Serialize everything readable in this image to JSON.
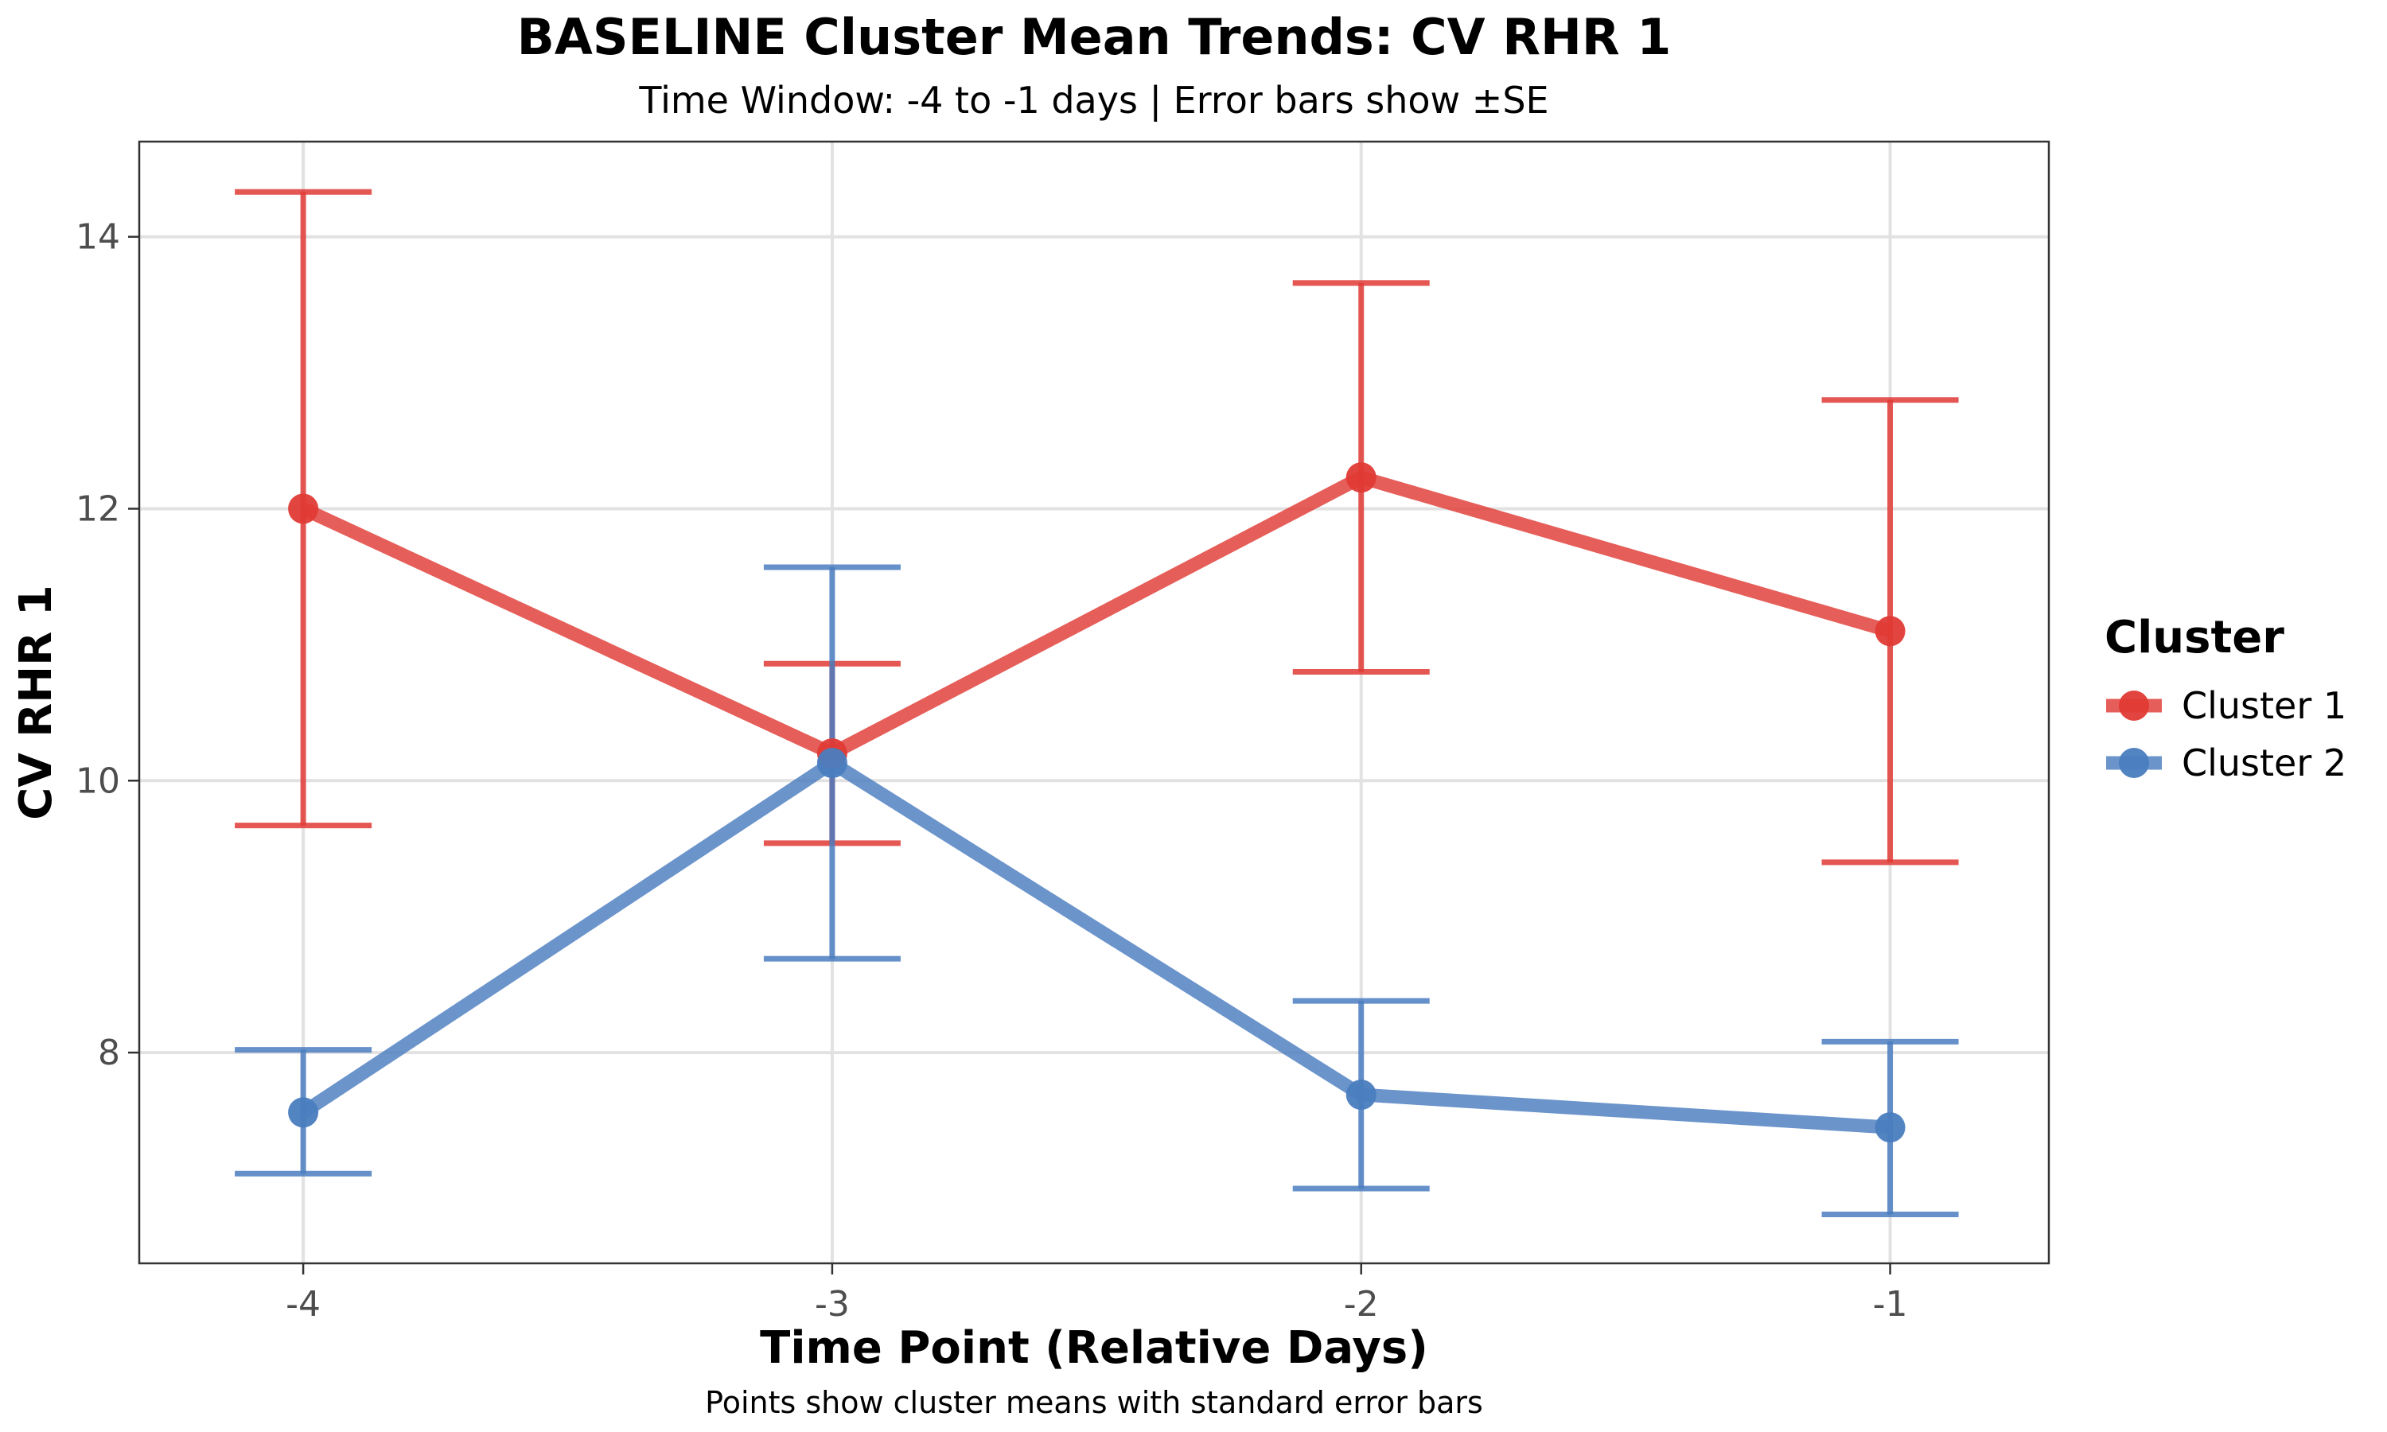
{
  "chart_data": {
    "type": "line",
    "title": "BASELINE Cluster Mean Trends: CV RHR 1",
    "subtitle": "Time Window: -4 to -1 days | Error bars show ±SE",
    "xlabel": "Time Point (Relative Days)",
    "ylabel": "CV RHR 1",
    "caption": "Points show cluster means with standard error bars",
    "x": [
      -4,
      -3,
      -2,
      -1
    ],
    "x_tick_labels": [
      "-4",
      "-3",
      "-2",
      "-1"
    ],
    "y_ticks": [
      8,
      10,
      12,
      14
    ],
    "y_tick_labels": [
      "8",
      "10",
      "12",
      "14"
    ],
    "xlim": [
      -4.31,
      -0.7
    ],
    "ylim": [
      6.45,
      14.7
    ],
    "grid": true,
    "legend": {
      "title": "Cluster",
      "position": "right"
    },
    "series": [
      {
        "name": "Cluster 1",
        "color": "#e03a35",
        "values": [
          12.0,
          10.2,
          12.23,
          11.1
        ],
        "error_lower": [
          9.67,
          9.54,
          10.8,
          9.4
        ],
        "error_upper": [
          14.33,
          10.86,
          13.66,
          12.8
        ]
      },
      {
        "name": "Cluster 2",
        "color": "#4a7dbf",
        "values": [
          7.56,
          10.13,
          7.69,
          7.45
        ],
        "error_lower": [
          7.11,
          8.69,
          7.0,
          6.81
        ],
        "error_upper": [
          8.02,
          11.57,
          8.38,
          8.08
        ]
      }
    ]
  }
}
